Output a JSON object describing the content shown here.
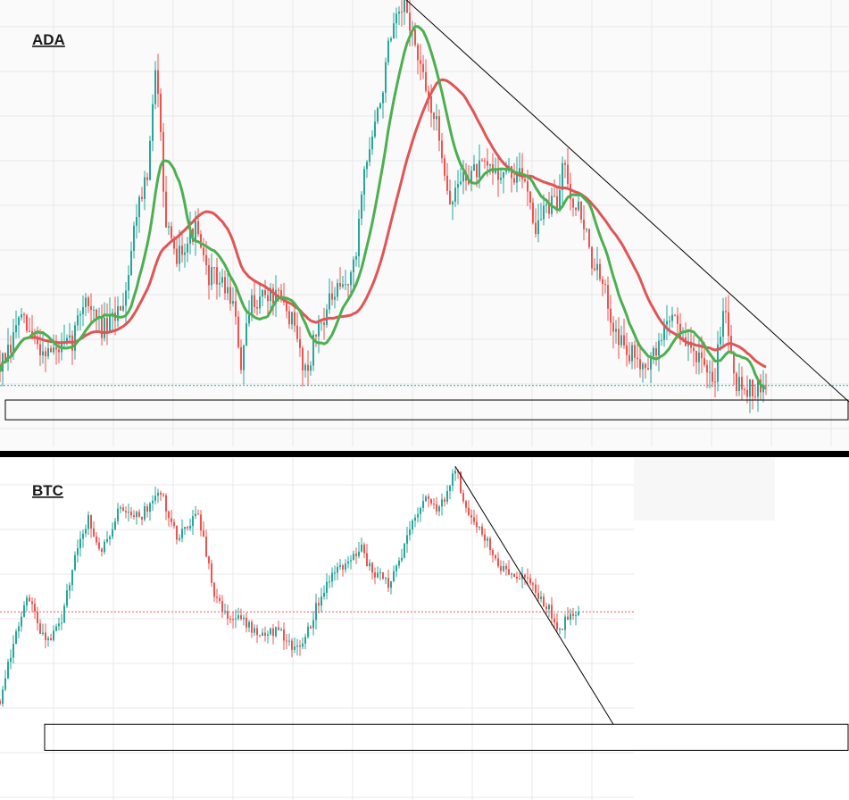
{
  "colors": {
    "up": "#26a69a",
    "down": "#ef5350",
    "ma_fast": "#4caf50",
    "ma_slow": "#e05555",
    "trendline": "#000000",
    "support_box": "#000000",
    "grid": "#e8e8e8",
    "separator": "#000000"
  },
  "chart_data": [
    {
      "type": "candlestick",
      "title": "ADA",
      "grid": true,
      "ylim": [
        0,
        100
      ],
      "x": [
        0,
        860
      ],
      "price_anchors": [
        [
          0,
          8
        ],
        [
          12,
          12
        ],
        [
          20,
          22
        ],
        [
          30,
          18
        ],
        [
          45,
          13
        ],
        [
          60,
          12
        ],
        [
          80,
          14
        ],
        [
          95,
          28
        ],
        [
          105,
          22
        ],
        [
          115,
          18
        ],
        [
          125,
          20
        ],
        [
          140,
          28
        ],
        [
          155,
          55
        ],
        [
          165,
          60
        ],
        [
          175,
          92
        ],
        [
          180,
          76
        ],
        [
          185,
          48
        ],
        [
          195,
          38
        ],
        [
          205,
          42
        ],
        [
          220,
          46
        ],
        [
          230,
          34
        ],
        [
          245,
          32
        ],
        [
          260,
          27
        ],
        [
          270,
          8
        ],
        [
          282,
          26
        ],
        [
          295,
          28
        ],
        [
          310,
          27
        ],
        [
          325,
          22
        ],
        [
          343,
          6
        ],
        [
          355,
          18
        ],
        [
          370,
          26
        ],
        [
          385,
          30
        ],
        [
          398,
          36
        ],
        [
          405,
          58
        ],
        [
          415,
          70
        ],
        [
          425,
          80
        ],
        [
          435,
          96
        ],
        [
          445,
          104
        ],
        [
          455,
          108
        ],
        [
          465,
          97
        ],
        [
          475,
          86
        ],
        [
          485,
          79
        ],
        [
          495,
          68
        ],
        [
          505,
          52
        ],
        [
          515,
          60
        ],
        [
          530,
          62
        ],
        [
          545,
          63
        ],
        [
          560,
          62
        ],
        [
          575,
          61
        ],
        [
          590,
          60
        ],
        [
          600,
          46
        ],
        [
          610,
          52
        ],
        [
          625,
          53
        ],
        [
          632,
          68
        ],
        [
          640,
          55
        ],
        [
          652,
          50
        ],
        [
          662,
          38
        ],
        [
          675,
          30
        ],
        [
          690,
          18
        ],
        [
          700,
          12
        ],
        [
          715,
          10
        ],
        [
          730,
          9
        ],
        [
          745,
          19
        ],
        [
          755,
          24
        ],
        [
          765,
          14
        ],
        [
          780,
          12
        ],
        [
          790,
          5
        ],
        [
          800,
          3
        ],
        [
          810,
          26
        ],
        [
          818,
          15
        ],
        [
          825,
          4
        ],
        [
          835,
          2
        ],
        [
          845,
          1.5
        ],
        [
          858,
          1.2
        ]
      ],
      "ma_fast_period": 12,
      "ma_slow_period": 30,
      "trendline": {
        "from": [
          455,
          110
        ],
        "to": [
          951,
          -2
        ]
      },
      "support_zone": {
        "from_x": 6,
        "to_x": 951,
        "top": -1.5,
        "bottom": -7
      }
    },
    {
      "type": "candlestick",
      "title": "BTC",
      "grid": true,
      "ylim": [
        0,
        100
      ],
      "x": [
        0,
        650
      ],
      "price_anchors": [
        [
          0,
          5
        ],
        [
          15,
          30
        ],
        [
          32,
          50
        ],
        [
          45,
          35
        ],
        [
          55,
          30
        ],
        [
          70,
          40
        ],
        [
          85,
          70
        ],
        [
          100,
          82
        ],
        [
          110,
          68
        ],
        [
          122,
          74
        ],
        [
          135,
          88
        ],
        [
          145,
          82
        ],
        [
          160,
          84
        ],
        [
          172,
          90
        ],
        [
          182,
          95
        ],
        [
          190,
          80
        ],
        [
          200,
          74
        ],
        [
          210,
          80
        ],
        [
          220,
          84
        ],
        [
          230,
          70
        ],
        [
          240,
          48
        ],
        [
          252,
          42
        ],
        [
          265,
          40
        ],
        [
          278,
          38
        ],
        [
          290,
          30
        ],
        [
          305,
          35
        ],
        [
          320,
          32
        ],
        [
          335,
          25
        ],
        [
          350,
          40
        ],
        [
          365,
          55
        ],
        [
          380,
          62
        ],
        [
          395,
          65
        ],
        [
          405,
          70
        ],
        [
          415,
          60
        ],
        [
          425,
          58
        ],
        [
          435,
          55
        ],
        [
          445,
          62
        ],
        [
          455,
          72
        ],
        [
          470,
          88
        ],
        [
          480,
          90
        ],
        [
          492,
          86
        ],
        [
          505,
          98
        ],
        [
          512,
          102
        ],
        [
          520,
          88
        ],
        [
          532,
          80
        ],
        [
          545,
          72
        ],
        [
          555,
          65
        ],
        [
          565,
          60
        ],
        [
          575,
          58
        ],
        [
          590,
          55
        ],
        [
          605,
          48
        ],
        [
          615,
          44
        ],
        [
          625,
          34
        ],
        [
          632,
          38
        ],
        [
          640,
          40
        ],
        [
          648,
          42
        ]
      ],
      "trendline": {
        "from": [
          510,
          104
        ],
        "to": [
          687,
          -5
        ]
      },
      "support_zone": {
        "from_x": 50,
        "to_x": 951,
        "top": -5,
        "bottom": -16
      }
    }
  ]
}
